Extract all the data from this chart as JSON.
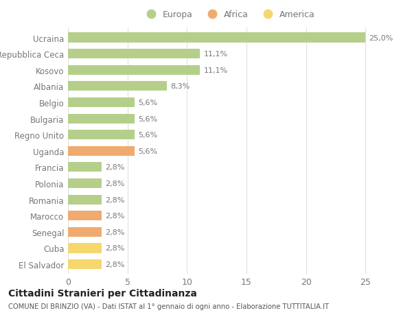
{
  "categories": [
    "El Salvador",
    "Cuba",
    "Senegal",
    "Marocco",
    "Romania",
    "Polonia",
    "Francia",
    "Uganda",
    "Regno Unito",
    "Bulgaria",
    "Belgio",
    "Albania",
    "Kosovo",
    "Repubblica Ceca",
    "Ucraina"
  ],
  "values": [
    2.8,
    2.8,
    2.8,
    2.8,
    2.8,
    2.8,
    2.8,
    5.6,
    5.6,
    5.6,
    5.6,
    8.3,
    11.1,
    11.1,
    25.0
  ],
  "colors": [
    "#f5d76e",
    "#f5d76e",
    "#f0aa70",
    "#f0aa70",
    "#b5cf8a",
    "#b5cf8a",
    "#b5cf8a",
    "#f0aa70",
    "#b5cf8a",
    "#b5cf8a",
    "#b5cf8a",
    "#b5cf8a",
    "#b5cf8a",
    "#b5cf8a",
    "#b5cf8a"
  ],
  "labels": [
    "2,8%",
    "2,8%",
    "2,8%",
    "2,8%",
    "2,8%",
    "2,8%",
    "2,8%",
    "5,6%",
    "5,6%",
    "5,6%",
    "5,6%",
    "8,3%",
    "11,1%",
    "11,1%",
    "25,0%"
  ],
  "legend": [
    {
      "label": "Europa",
      "color": "#b5cf8a"
    },
    {
      "label": "Africa",
      "color": "#f0aa70"
    },
    {
      "label": "America",
      "color": "#f5d76e"
    }
  ],
  "title": "Cittadini Stranieri per Cittadinanza",
  "subtitle": "COMUNE DI BRINZIO (VA) - Dati ISTAT al 1° gennaio di ogni anno - Elaborazione TUTTITALIA.IT",
  "xlim": [
    0,
    27
  ],
  "xticks": [
    0,
    5,
    10,
    15,
    20,
    25
  ],
  "background_color": "#ffffff",
  "grid_color": "#e0e0e0",
  "label_color": "#777777",
  "title_color": "#222222",
  "subtitle_color": "#555555"
}
